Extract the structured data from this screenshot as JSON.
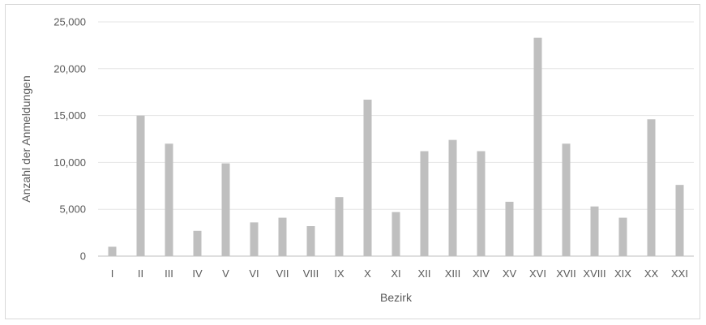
{
  "chart_data": {
    "type": "bar",
    "title": "",
    "xlabel": "Bezirk",
    "ylabel": "Anzahl der Anmeldungen",
    "categories": [
      "I",
      "II",
      "III",
      "IV",
      "V",
      "VI",
      "VII",
      "VIII",
      "IX",
      "X",
      "XI",
      "XII",
      "XIII",
      "XIV",
      "XV",
      "XVI",
      "XVII",
      "XVIII",
      "XIX",
      "XX",
      "XXI"
    ],
    "values": [
      1000,
      15000,
      12000,
      2700,
      9900,
      3600,
      4100,
      3200,
      6300,
      16700,
      4700,
      11200,
      12400,
      11200,
      5800,
      23300,
      12000,
      5300,
      4100,
      14600,
      7600
    ],
    "ylim": [
      0,
      25000
    ],
    "yticks": [
      0,
      5000,
      10000,
      15000,
      20000,
      25000
    ],
    "ytick_labels": [
      "0",
      "5,000",
      "10,000",
      "15,000",
      "20,000",
      "25,000"
    ],
    "grid": true,
    "legend": "none",
    "colors": {
      "bar": "#bfbfbf",
      "grid": "#e6e6e6",
      "axis": "#bfbfbf",
      "text": "#595959"
    }
  }
}
